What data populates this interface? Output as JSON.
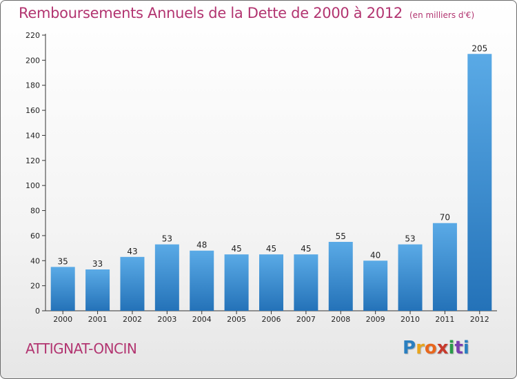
{
  "header": {
    "title": "Remboursements Annuels de la Dette de 2000 à 2012",
    "unit": "(en milliers d'€)"
  },
  "footer": {
    "commune": "ATTIGNAT-ONCIN",
    "logo_letters": [
      "P",
      "r",
      "o",
      "x",
      "i",
      "t",
      "i"
    ],
    "logo_colors": [
      "#2a7fc0",
      "#e8a51e",
      "#e8671e",
      "#c73a2c",
      "#2a9a4a",
      "#7a3fb0",
      "#2a7fc0"
    ]
  },
  "colors": {
    "accent": "#b23470",
    "bar_top": "#5aaae6",
    "bar_bottom": "#2472b8"
  },
  "chart_data": {
    "type": "bar",
    "categories": [
      "2000",
      "2001",
      "2002",
      "2003",
      "2004",
      "2005",
      "2006",
      "2007",
      "2008",
      "2009",
      "2010",
      "2011",
      "2012"
    ],
    "values": [
      35,
      33,
      43,
      53,
      48,
      45,
      45,
      45,
      55,
      40,
      53,
      70,
      205
    ],
    "ylim": [
      0,
      220
    ],
    "yticks": [
      0,
      20,
      40,
      60,
      80,
      100,
      120,
      140,
      160,
      180,
      200,
      220
    ],
    "grid": false
  }
}
